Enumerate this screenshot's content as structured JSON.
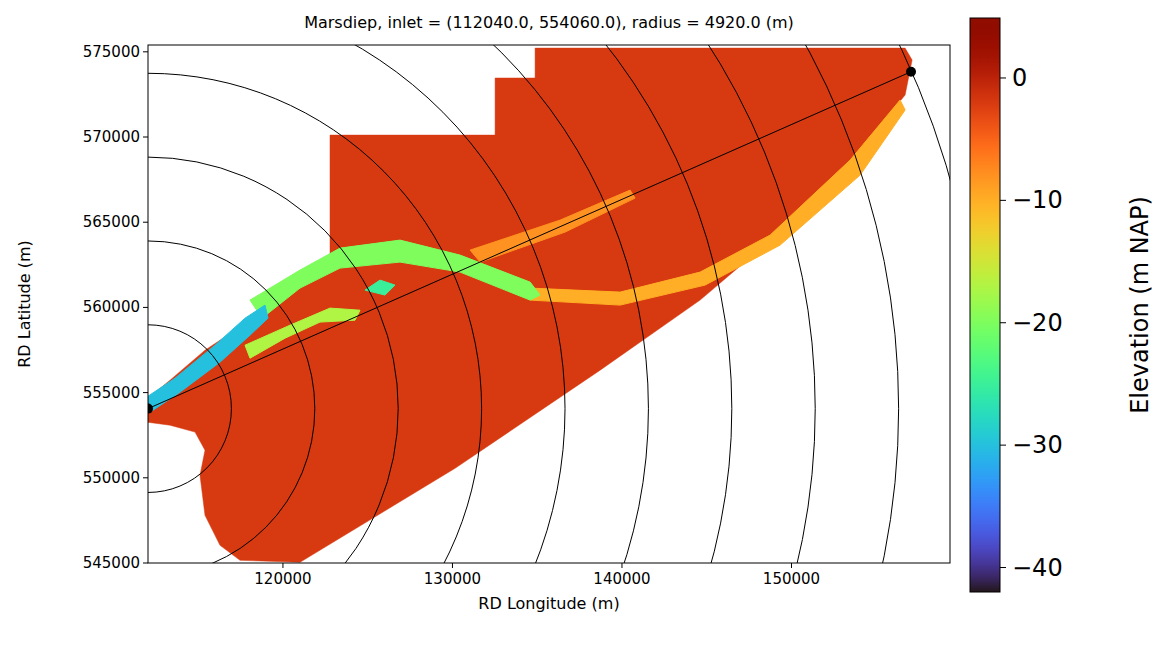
{
  "chart_data": {
    "type": "map",
    "title": "Marsdiep, inlet = (112040.0, 554060.0), radius = 4920.0 (m)",
    "x_label": "RD Longitude (m)",
    "y_label": "RD Latitude (m)",
    "xlim": [
      112040,
      159350
    ],
    "ylim": [
      545000,
      575400
    ],
    "xticks": [
      120000,
      130000,
      140000,
      150000
    ],
    "yticks": [
      545000,
      550000,
      555000,
      560000,
      565000,
      570000,
      575000
    ],
    "inlet": [
      112040,
      554060
    ],
    "radius": 4920,
    "rings": 10,
    "endpoint": [
      157050,
      573830
    ],
    "domain": {
      "elevation": -2,
      "points": [
        [
          112040,
          554670
        ],
        [
          113338,
          555729
        ],
        [
          115403,
          557491
        ],
        [
          118058,
          559252
        ],
        [
          122778,
          563069
        ],
        [
          122778,
          570115
        ],
        [
          132513,
          570115
        ],
        [
          132513,
          573462
        ],
        [
          134873,
          573462
        ],
        [
          134873,
          575220
        ],
        [
          156703,
          575220
        ],
        [
          157116,
          574519
        ],
        [
          156703,
          572464
        ],
        [
          154048,
          569234
        ],
        [
          150508,
          565418
        ],
        [
          144608,
          560426
        ],
        [
          138708,
          556316
        ],
        [
          130153,
          550560
        ],
        [
          121008,
          545040
        ],
        [
          117468,
          545160
        ],
        [
          116288,
          546040
        ],
        [
          115403,
          547800
        ],
        [
          115108,
          550150
        ],
        [
          115403,
          551620
        ],
        [
          114810,
          552680
        ],
        [
          113340,
          553090
        ],
        [
          112040,
          553260
        ]
      ]
    },
    "features": [
      {
        "elevation": -8,
        "points": [
          [
            131038,
            563362
          ],
          [
            136348,
            565124
          ],
          [
            140478,
            566886
          ],
          [
            140773,
            566416
          ],
          [
            136643,
            564420
          ],
          [
            131628,
            562658
          ]
        ]
      },
      {
        "elevation": -10,
        "points": [
          [
            134578,
            561131
          ],
          [
            139888,
            560896
          ],
          [
            144608,
            562070
          ],
          [
            148738,
            564243
          ],
          [
            153458,
            568647
          ],
          [
            156408,
            572170
          ],
          [
            156703,
            571583
          ],
          [
            154048,
            567766
          ],
          [
            149328,
            563656
          ],
          [
            144903,
            561307
          ],
          [
            139888,
            560133
          ],
          [
            134578,
            560426
          ]
        ]
      },
      {
        "elevation": -17,
        "points": [
          [
            117763,
            557784
          ],
          [
            120418,
            558958
          ],
          [
            122778,
            559957
          ],
          [
            124548,
            559839
          ],
          [
            124253,
            559252
          ],
          [
            122188,
            559135
          ],
          [
            120123,
            558195
          ],
          [
            118058,
            557021
          ]
        ]
      },
      {
        "elevation": -20,
        "points": [
          [
            118058,
            560426
          ],
          [
            121008,
            562188
          ],
          [
            123368,
            563480
          ],
          [
            126908,
            563950
          ],
          [
            130448,
            563069
          ],
          [
            134578,
            561483
          ],
          [
            135168,
            560720
          ],
          [
            134578,
            560426
          ],
          [
            130448,
            562070
          ],
          [
            126908,
            562658
          ],
          [
            123368,
            562306
          ],
          [
            121008,
            561131
          ],
          [
            118766,
            559369
          ]
        ]
      },
      {
        "elevation": -25,
        "points": [
          [
            125728,
            561601
          ],
          [
            126613,
            561307
          ],
          [
            126023,
            560720
          ],
          [
            124843,
            561013
          ]
        ]
      },
      {
        "elevation": -30,
        "points": [
          [
            112040,
            554790
          ],
          [
            113633,
            555846
          ],
          [
            115993,
            557784
          ],
          [
            117763,
            559369
          ],
          [
            118943,
            560133
          ],
          [
            119120,
            559369
          ],
          [
            118058,
            558371
          ],
          [
            116288,
            556786
          ],
          [
            113928,
            555024
          ],
          [
            112158,
            553850
          ]
        ]
      }
    ],
    "colorbar": {
      "label": "Elevation (m NAP)",
      "range": [
        -42,
        4.9
      ],
      "ticks": [
        0,
        {
          "value": -10,
          "label": "−10"
        },
        {
          "value": -20,
          "label": "−20"
        },
        {
          "value": -30,
          "label": "−30"
        },
        {
          "value": -40,
          "label": "−40"
        }
      ]
    }
  }
}
